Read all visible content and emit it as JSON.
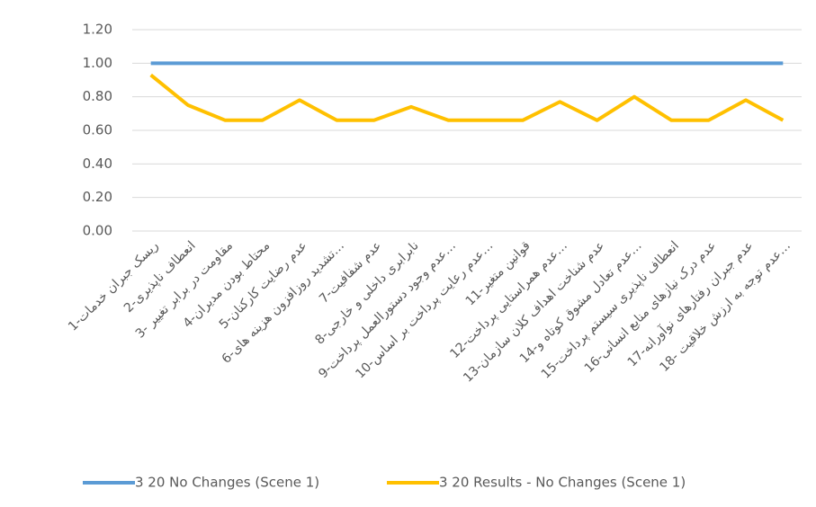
{
  "chart_data": {
    "type": "line",
    "categories": [
      "1-ریسک جبران خدمات",
      "2-انعطاف ناپذیری",
      "3- مقاومت در برابر تغییر",
      "4-محتاط بودن مدیران",
      "5-عدم رضایت کارکنان",
      "6-تشدید روزافزون هزینه های…",
      "7-عدم شفافیت",
      "8-نابرابری داخلی و خارجی",
      "9-عدم وجود دستورالعمل پرداخت…",
      "10-عدم رعایت پرداخت بر اساس…",
      "11-قوانین متغیر",
      "12-عدم همراستایی پرداخت…",
      "13-عدم شناخت اهداف کلان سازمان",
      "14-عدم تعادل مشوق کوتاه و…",
      "15-انعطاف ناپذیری سیستم پرداخت",
      "16-عدم درک نیازهای منابع انسانی",
      "17-عدم جبران رفتارهای نوآورانه",
      "18- عدم توجه به ارزش خلاقیت…"
    ],
    "series": [
      {
        "name": "3 20 No Changes (Scene 1)",
        "color": "#5b9bd5",
        "values": [
          1,
          1,
          1,
          1,
          1,
          1,
          1,
          1,
          1,
          1,
          1,
          1,
          1,
          1,
          1,
          1,
          1,
          1
        ]
      },
      {
        "name": "3 20 Results - No Changes (Scene 1)",
        "color": "#ffc000",
        "values": [
          0.93,
          0.75,
          0.66,
          0.66,
          0.78,
          0.66,
          0.66,
          0.74,
          0.66,
          0.66,
          0.66,
          0.77,
          0.66,
          0.8,
          0.66,
          0.66,
          0.78,
          0.66
        ]
      }
    ],
    "ylim": [
      0,
      1.2
    ],
    "yticks": [
      {
        "value": 0,
        "label": "0.00"
      },
      {
        "value": 0.2,
        "label": "0.20"
      },
      {
        "value": 0.4,
        "label": "0.40"
      },
      {
        "value": 0.6,
        "label": "0.60"
      },
      {
        "value": 0.8,
        "label": "0.80"
      },
      {
        "value": 1,
        "label": "1.00"
      },
      {
        "value": 1.2,
        "label": "1.20"
      }
    ],
    "grid": true,
    "legend": "bottom"
  }
}
